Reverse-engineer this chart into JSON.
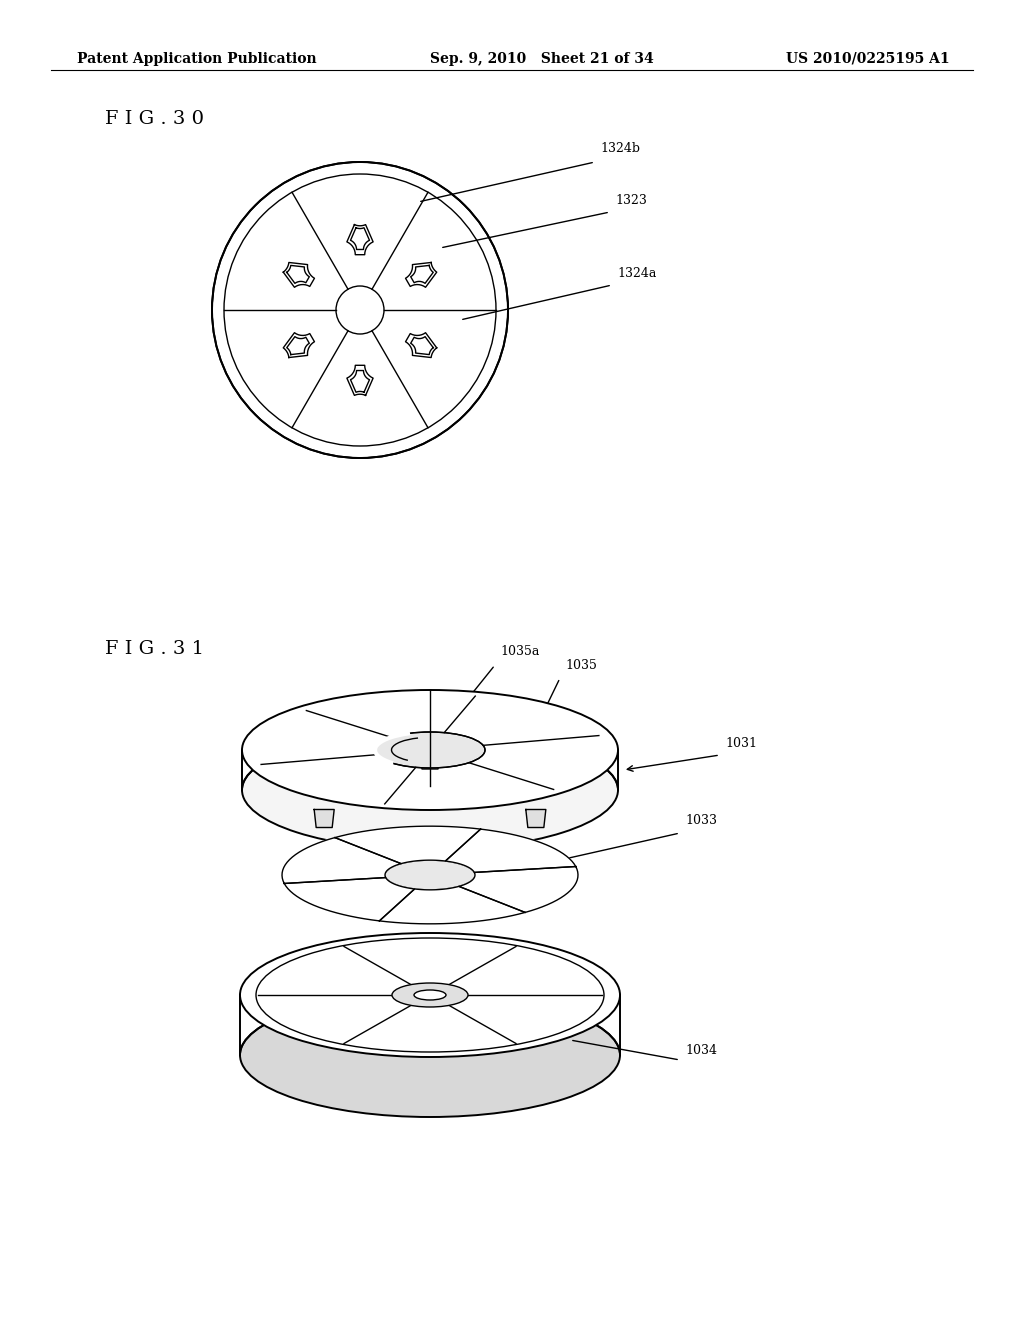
{
  "header_left": "Patent Application Publication",
  "header_mid": "Sep. 9, 2010   Sheet 21 of 34",
  "header_right": "US 2010/0225195 A1",
  "fig30_label": "F I G . 3 0",
  "fig31_label": "F I G . 3 1",
  "bg_color": "#ffffff",
  "line_color": "#000000",
  "fontsize_header": 10,
  "fontsize_label": 9,
  "fontsize_fig": 14
}
